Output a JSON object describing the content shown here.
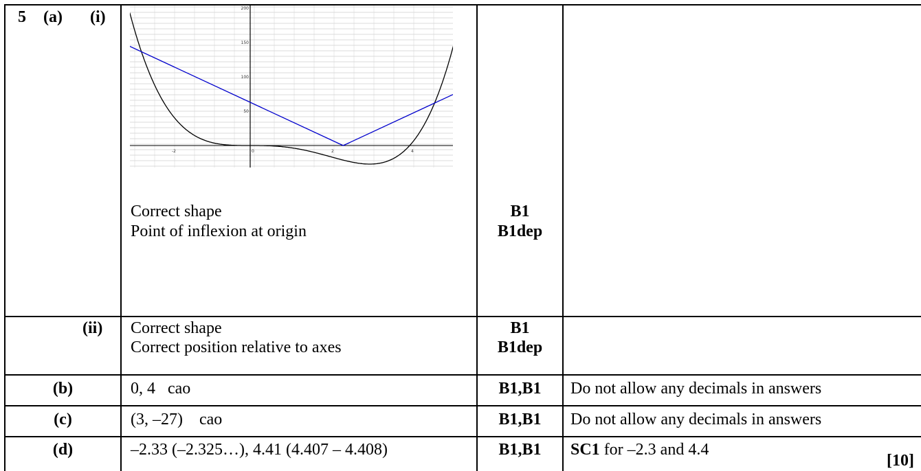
{
  "question": {
    "number": "5",
    "part_a": "(a)",
    "sub_i": "(i)",
    "sub_ii": "(ii)"
  },
  "rows": {
    "a_i": {
      "lines": [
        "Correct shape",
        "Point of inflexion at origin"
      ],
      "marks": [
        "B1",
        "B1dep"
      ]
    },
    "a_ii": {
      "lines": [
        "Correct shape",
        "Correct position relative to axes"
      ],
      "marks": [
        "B1",
        "B1dep"
      ]
    },
    "b": {
      "label": "(b)",
      "answer": "0, 4   cao",
      "marks": "B1,B1",
      "note": "Do not allow any decimals in answers"
    },
    "c": {
      "label": "(c)",
      "answer": "(3, –27)    cao",
      "marks": "B1,B1",
      "note": "Do not allow any decimals in answers"
    },
    "d": {
      "label": "(d)",
      "answer": "–2.33 (–2.325…), 4.41 (4.407 – 4.408)",
      "marks": "B1,B1",
      "note_bold": "SC1",
      "note_rest": " for –2.3 and 4.4",
      "total": "[10]"
    }
  },
  "graph": {
    "x_ticks": [
      "-2",
      "0",
      "2",
      "4"
    ],
    "y_ticks": [
      "50",
      "100",
      "150",
      "200"
    ],
    "curve_color": "#000000",
    "line_color": "#0000cc"
  }
}
